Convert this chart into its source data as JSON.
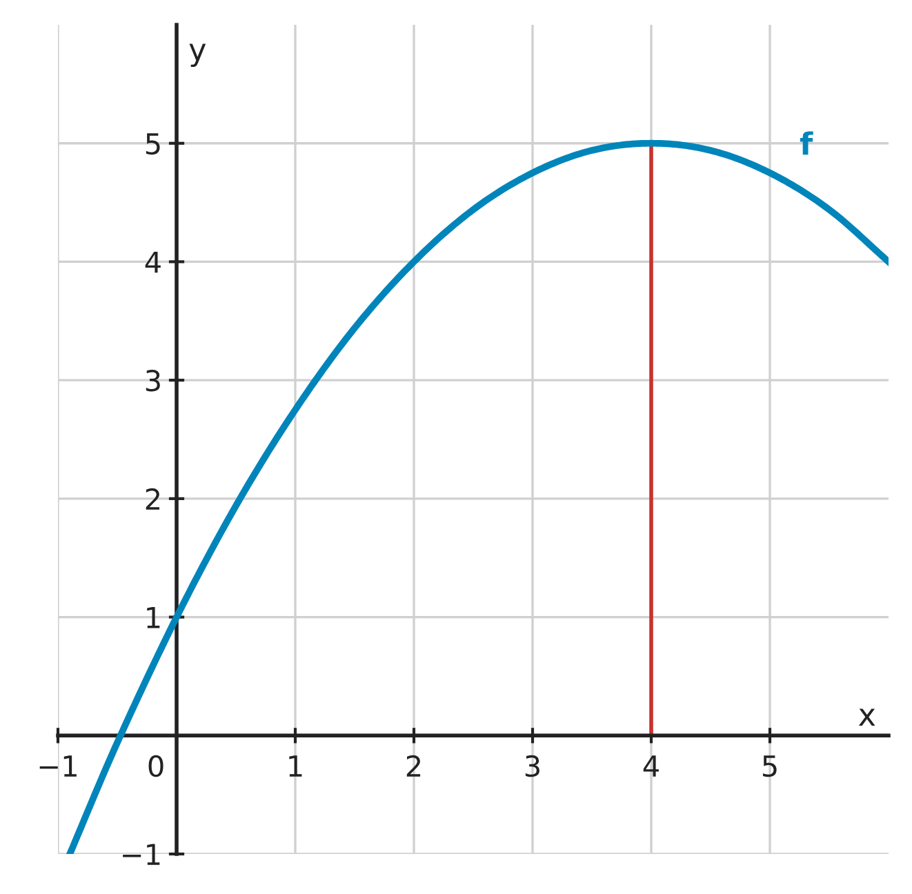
{
  "chart_data": {
    "type": "line",
    "xlabel": "x",
    "ylabel": "y",
    "xlim": [
      -1,
      6
    ],
    "ylim": [
      -1,
      6
    ],
    "xticks": [
      {
        "value": -1,
        "label": "−1"
      },
      {
        "value": 0,
        "label": "0"
      },
      1,
      2,
      3,
      4,
      5
    ],
    "yticks": [
      {
        "value": -1,
        "label": "−1"
      },
      {
        "value": 0,
        "label": null
      },
      1,
      2,
      3,
      4,
      5
    ],
    "grid": true,
    "legend": false,
    "marker": "none",
    "line_style": "solid",
    "series": [
      {
        "name": "f",
        "color": "#0085bb",
        "x": [
          -0.9,
          -0.5,
          0,
          0.5,
          1,
          1.5,
          2,
          2.5,
          3,
          3.5,
          4,
          4.5,
          5,
          5.5,
          6
        ],
        "values": [
          -1.0,
          -0.06,
          1,
          1.94,
          2.75,
          3.44,
          4,
          4.44,
          4.75,
          4.94,
          5,
          4.94,
          4.75,
          4.44,
          4
        ]
      },
      {
        "color": "#c8322d",
        "x": [
          4,
          4
        ],
        "values": [
          0,
          5
        ]
      }
    ]
  }
}
